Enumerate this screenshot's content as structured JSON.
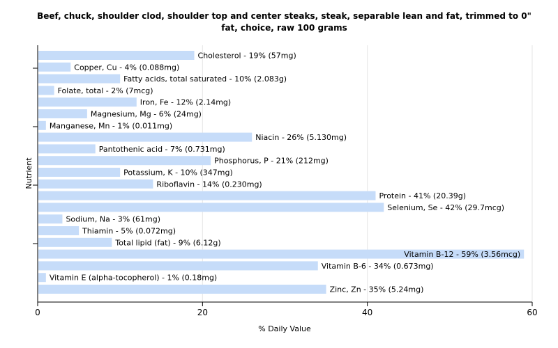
{
  "chart_data": {
    "type": "bar",
    "orientation": "horizontal",
    "title": "Beef, chuck, shoulder clod, shoulder top and center steaks, steak, separable lean and fat, trimmed to 0\" fat, choice, raw 100 grams",
    "xlabel": "% Daily Value",
    "ylabel": "Nutrient",
    "xlim": [
      0,
      60
    ],
    "xticks": [
      "0",
      "20",
      "40",
      "60"
    ],
    "grid": true,
    "bar_color": "#c6dcf9",
    "categories": [
      "Cholesterol",
      "Copper, Cu",
      "Fatty acids, total saturated",
      "Folate, total",
      "Iron, Fe",
      "Magnesium, Mg",
      "Manganese, Mn",
      "Niacin",
      "Pantothenic acid",
      "Phosphorus, P",
      "Potassium, K",
      "Riboflavin",
      "Protein",
      "Selenium, Se",
      "Sodium, Na",
      "Thiamin",
      "Total lipid (fat)",
      "Vitamin B-12",
      "Vitamin B-6",
      "Vitamin E (alpha-tocopherol)",
      "Zinc, Zn"
    ],
    "values": [
      19,
      4,
      10,
      2,
      12,
      6,
      1,
      26,
      7,
      21,
      10,
      14,
      41,
      42,
      3,
      5,
      9,
      59,
      34,
      1,
      35
    ],
    "labels": [
      "Cholesterol - 19% (57mg)",
      "Copper, Cu - 4% (0.088mg)",
      "Fatty acids, total saturated - 10% (2.083g)",
      "Folate, total - 2% (7mcg)",
      "Iron, Fe - 12% (2.14mg)",
      "Magnesium, Mg - 6% (24mg)",
      "Manganese, Mn - 1% (0.011mg)",
      "Niacin - 26% (5.130mg)",
      "Pantothenic acid - 7% (0.731mg)",
      "Phosphorus, P - 21% (212mg)",
      "Potassium, K - 10% (347mg)",
      "Riboflavin - 14% (0.230mg)",
      "Protein - 41% (20.39g)",
      "Selenium, Se - 42% (29.7mcg)",
      "Sodium, Na - 3% (61mg)",
      "Thiamin - 5% (0.072mg)",
      "Total lipid (fat) - 9% (6.12g)",
      "Vitamin B-12 - 59% (3.56mcg)",
      "Vitamin B-6 - 34% (0.673mg)",
      "Vitamin E (alpha-tocopherol) - 1% (0.18mg)",
      "Zinc, Zn - 35% (5.24mg)"
    ]
  }
}
